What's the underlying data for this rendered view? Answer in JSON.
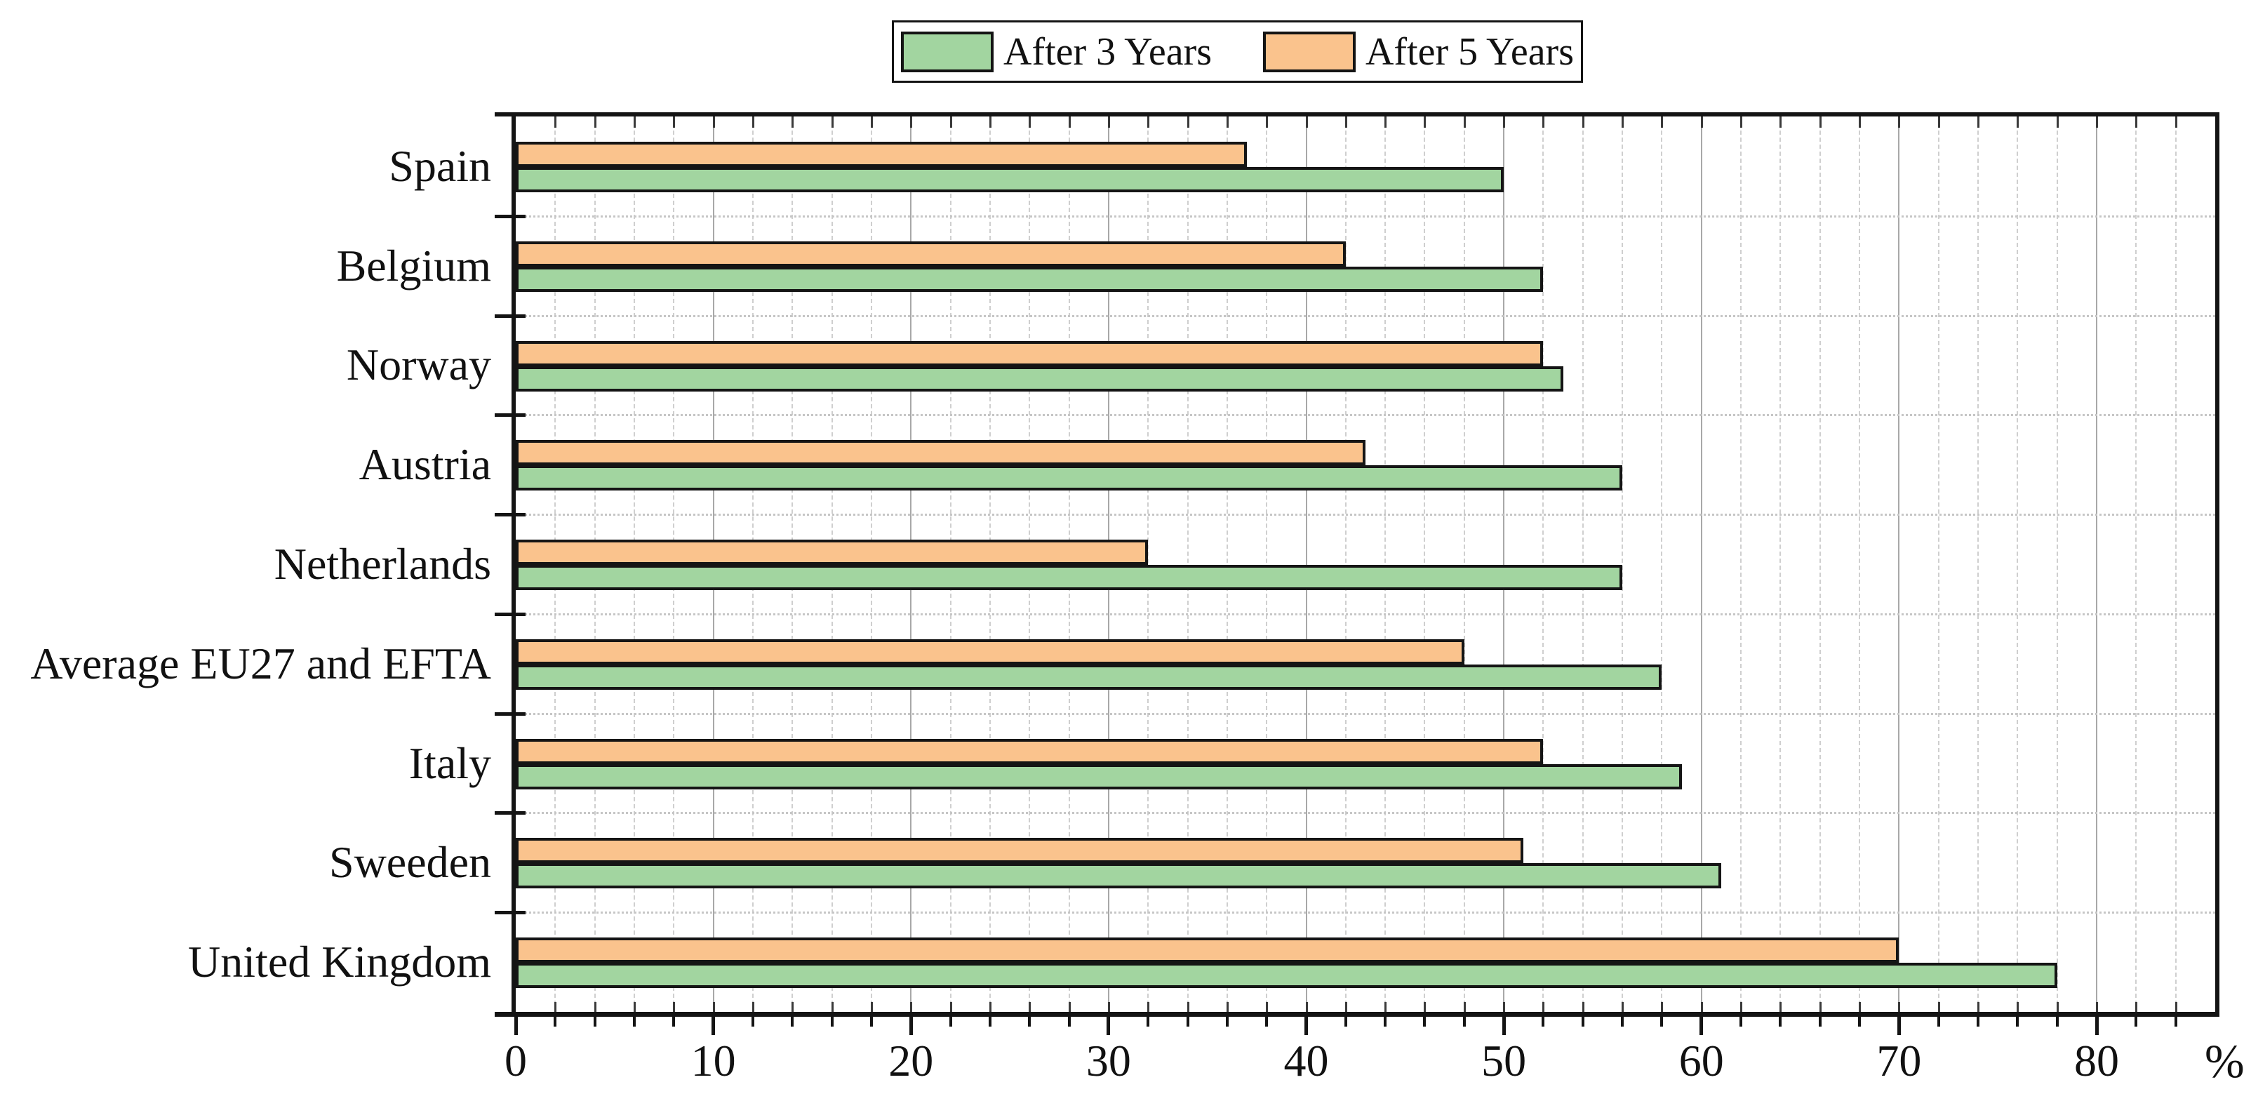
{
  "chart_data": {
    "type": "bar",
    "orientation": "horizontal",
    "title": "",
    "xlabel": "%",
    "ylabel": "",
    "xlim": [
      0,
      86
    ],
    "x_major_tick_step": 10,
    "x_minor_tick_step": 2,
    "grid": {
      "vertical_major": "solid",
      "vertical_minor": "dashed",
      "horizontal_category_boundaries": "dotted"
    },
    "legend_position": "top-center",
    "categories": [
      "Spain",
      "Belgium",
      "Norway",
      "Austria",
      "Netherlands",
      "Average EU27 and EFTA",
      "Italy",
      "Sweeden",
      "United Kingdom"
    ],
    "series": [
      {
        "name": "After 3 Years",
        "color": "#a2d5a0",
        "values": [
          50,
          52,
          53,
          56,
          56,
          58,
          59,
          61,
          78
        ]
      },
      {
        "name": "After 5 Years",
        "color": "#fac38d",
        "values": [
          37,
          42,
          52,
          43,
          32,
          48,
          52,
          51,
          70
        ]
      }
    ],
    "bar_order_within_group_top_to_bottom": [
      "After 5 Years",
      "After 3 Years"
    ]
  },
  "legend": {
    "items": [
      {
        "label": "After 3 Years",
        "color": "#a2d5a0"
      },
      {
        "label": "After 5 Years",
        "color": "#fac38d"
      }
    ]
  },
  "axis": {
    "x_tick_labels": [
      "0",
      "10",
      "20",
      "30",
      "40",
      "50",
      "60",
      "70",
      "80"
    ],
    "unit_label": "%"
  },
  "colors": {
    "bar_border": "#151515",
    "frame": "#141414",
    "grid_major": "#a8a8a8",
    "grid_minor": "#cfcfcf",
    "grid_boundary": "#c6c6c6"
  }
}
